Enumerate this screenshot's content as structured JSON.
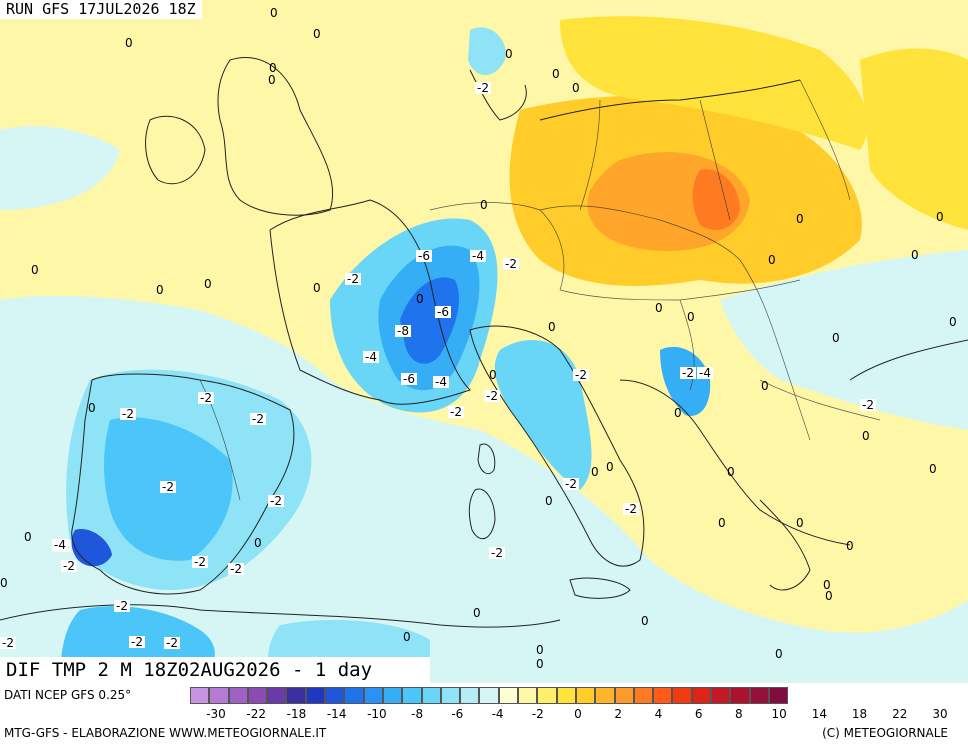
{
  "header": {
    "run_title": "RUN GFS 17JUL2026 18Z",
    "field_title": "DIF TMP 2 M 18Z02AUG2026 - 1 day"
  },
  "footer": {
    "source": "DATI NCEP GFS 0.25°",
    "credit_left": "MTG-GFS - ELABORAZIONE WWW.METEOGIORNALE.IT",
    "credit_right": "(C) METEOGIORNALE"
  },
  "legend": {
    "colors": [
      "#c893e0",
      "#b47ad4",
      "#a061c4",
      "#8a4bb2",
      "#6a3aa8",
      "#3b2fa0",
      "#2038c0",
      "#1f56dc",
      "#1f74ee",
      "#2a92f4",
      "#36aef6",
      "#4cc6f8",
      "#6ad6f7",
      "#8ee3f6",
      "#b3eef6",
      "#d6f6f6",
      "#fbffd2",
      "#fff7a8",
      "#fff06a",
      "#ffe23a",
      "#ffcc2a",
      "#ffb52a",
      "#ff9a2a",
      "#ff7b22",
      "#ff5a18",
      "#f03a12",
      "#dc2418",
      "#c41828",
      "#ac1230",
      "#94103a",
      "#800c40"
    ],
    "ticks": [
      "-30",
      "-22",
      "-18",
      "-14",
      "-10",
      "-8",
      "-6",
      "-4",
      "-2",
      "0",
      "2",
      "4",
      "6",
      "8",
      "10",
      "14",
      "18",
      "22",
      "30"
    ]
  },
  "map": {
    "contour_labels": [
      {
        "t": "0"
      },
      {
        "t": "0"
      },
      {
        "t": "0"
      },
      {
        "t": "0"
      },
      {
        "t": "-2"
      },
      {
        "t": "0"
      },
      {
        "t": "0"
      },
      {
        "t": "0"
      },
      {
        "t": "0"
      },
      {
        "t": "0"
      },
      {
        "t": "0"
      },
      {
        "t": "0"
      },
      {
        "t": "-2"
      },
      {
        "t": "-6"
      },
      {
        "t": "-4"
      },
      {
        "t": "-2"
      },
      {
        "t": "-6"
      },
      {
        "t": "-8"
      },
      {
        "t": "-4"
      },
      {
        "t": "-6"
      },
      {
        "t": "-4"
      },
      {
        "t": "-2"
      },
      {
        "t": "-2"
      },
      {
        "t": "0"
      },
      {
        "t": "-2"
      },
      {
        "t": "-2"
      },
      {
        "t": "-2"
      },
      {
        "t": "0"
      },
      {
        "t": "-2"
      },
      {
        "t": "0"
      },
      {
        "t": "0"
      },
      {
        "t": "-2"
      },
      {
        "t": "-4"
      },
      {
        "t": "0"
      },
      {
        "t": "-2"
      },
      {
        "t": "0"
      },
      {
        "t": "0"
      },
      {
        "t": "0"
      },
      {
        "t": "0"
      },
      {
        "t": "0"
      },
      {
        "t": "-2"
      },
      {
        "t": "-2"
      },
      {
        "t": "-2"
      },
      {
        "t": "0"
      },
      {
        "t": "0"
      },
      {
        "t": "0"
      },
      {
        "t": "-2"
      },
      {
        "t": "-2"
      },
      {
        "t": "-2"
      },
      {
        "t": "-2"
      },
      {
        "t": "0"
      },
      {
        "t": "0"
      },
      {
        "t": "0"
      },
      {
        "t": "0"
      },
      {
        "t": "0"
      },
      {
        "t": "0"
      },
      {
        "t": "0"
      },
      {
        "t": "0"
      },
      {
        "t": "0"
      },
      {
        "t": "0"
      },
      {
        "t": "0"
      },
      {
        "t": "-4"
      },
      {
        "t": "-2"
      },
      {
        "t": "0"
      },
      {
        "t": "0"
      },
      {
        "t": "-2"
      },
      {
        "t": "-2"
      },
      {
        "t": "-2"
      },
      {
        "t": "0"
      },
      {
        "t": "0"
      },
      {
        "t": "0"
      },
      {
        "t": "0"
      },
      {
        "t": "0"
      },
      {
        "t": "0"
      },
      {
        "t": "0"
      },
      {
        "t": "-4"
      },
      {
        "t": "-2"
      },
      {
        "t": "0"
      },
      {
        "t": "0"
      },
      {
        "t": "0"
      }
    ]
  }
}
